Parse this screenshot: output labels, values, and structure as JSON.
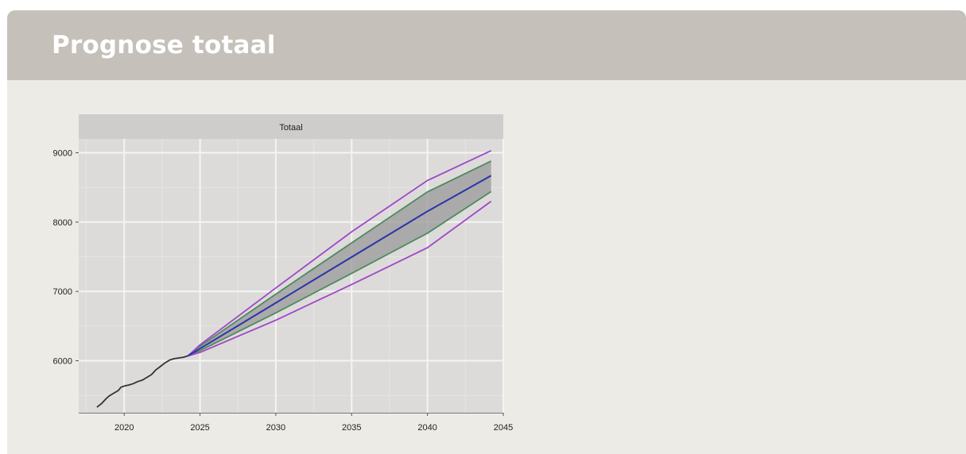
{
  "header": {
    "title": "Prognose totaal"
  },
  "colors": {
    "header_bg": "#c5c0b9",
    "card_bg": "#edebe6",
    "panel_bg": "#dcdbd9",
    "strip_bg": "#cfcdcb",
    "history_line": "#333333",
    "forecast_line": "#2d33a8",
    "band80_fill": "#9a9a9a",
    "band80_edge": "#4e8a5e",
    "band95_edge": "#a146c9"
  },
  "chart_data": {
    "type": "line",
    "facet_label": "Totaal",
    "xlabel": "",
    "ylabel": "",
    "xlim": [
      2017,
      2045
    ],
    "ylim": [
      5250,
      9200
    ],
    "x_ticks": [
      2020,
      2025,
      2030,
      2035,
      2040,
      2045
    ],
    "y_ticks": [
      6000,
      7000,
      8000,
      9000
    ],
    "grid": true,
    "legend": "none",
    "series": [
      {
        "kind": "history",
        "x": [
          2018.2,
          2018.5,
          2018.8,
          2019.0,
          2019.3,
          2019.6,
          2019.8,
          2020.1,
          2020.3,
          2020.6,
          2020.9,
          2021.2,
          2021.5,
          2021.8,
          2022.1,
          2022.4,
          2022.7,
          2023.0,
          2023.3,
          2023.6,
          2023.9,
          2024.2
        ],
        "y": [
          5330,
          5380,
          5450,
          5490,
          5530,
          5570,
          5620,
          5640,
          5650,
          5670,
          5700,
          5720,
          5760,
          5800,
          5870,
          5920,
          5970,
          6010,
          6030,
          6040,
          6050,
          6070
        ]
      },
      {
        "kind": "forecast",
        "x": [
          2024.2,
          2025,
          2030,
          2035,
          2040,
          2044.2
        ],
        "mean": [
          6070,
          6175,
          6835,
          7495,
          8155,
          8670
        ],
        "lower80": [
          6070,
          6145,
          6690,
          7260,
          7840,
          8440
        ],
        "upper80": [
          6070,
          6210,
          6960,
          7700,
          8435,
          8880
        ],
        "lower95": [
          6070,
          6120,
          6585,
          7100,
          7630,
          8300
        ],
        "upper95": [
          6070,
          6230,
          7050,
          7860,
          8600,
          9030
        ]
      }
    ]
  }
}
